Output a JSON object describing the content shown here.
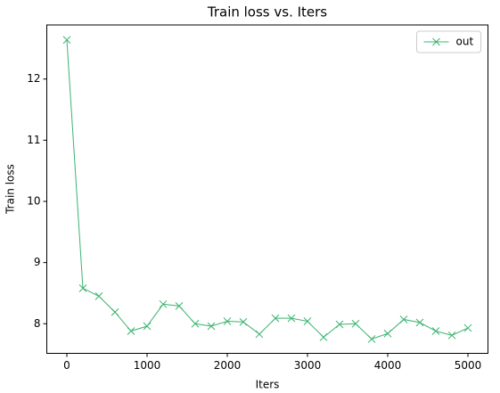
{
  "chart_data": {
    "type": "line",
    "title": "Train loss  vs. Iters",
    "x_label": "Iters",
    "y_label": "Train loss",
    "x": [
      0,
      200,
      400,
      600,
      800,
      1000,
      1200,
      1400,
      1600,
      1800,
      2000,
      2200,
      2400,
      2600,
      2800,
      3000,
      3200,
      3400,
      3600,
      3800,
      4000,
      4200,
      4400,
      4600,
      4800,
      5000
    ],
    "series": [
      {
        "name": "out",
        "color": "#3cb371",
        "marker": "x",
        "values": [
          12.64,
          8.58,
          8.45,
          8.19,
          7.88,
          7.96,
          8.32,
          8.29,
          8.0,
          7.96,
          8.04,
          8.03,
          7.83,
          8.09,
          8.09,
          8.04,
          7.78,
          7.99,
          8.0,
          7.75,
          7.84,
          8.07,
          8.02,
          7.88,
          7.81,
          7.93
        ]
      }
    ],
    "xlim": [
      -250,
      5250
    ],
    "xticks": [
      0,
      1000,
      2000,
      3000,
      4000,
      5000
    ],
    "ylim": [
      7.516,
      12.884
    ],
    "yticks": [
      8,
      9,
      10,
      11,
      12
    ],
    "legend": "upper right"
  }
}
